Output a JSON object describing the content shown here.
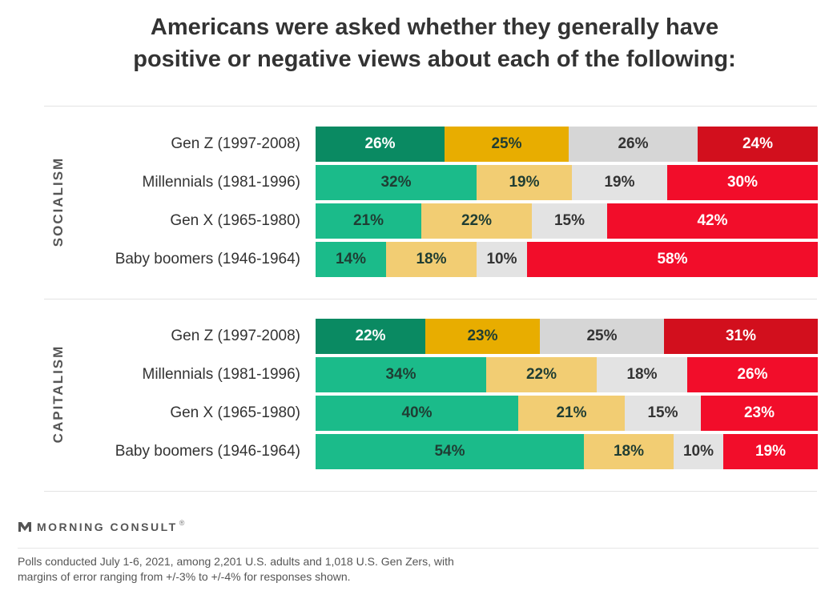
{
  "title_lines": [
    "Americans were asked whether they generally have",
    "positive or negative views about each of the following:"
  ],
  "colors": {
    "section_first_row": [
      "#0a8a62",
      "#e8ad00",
      "#d6d6d6",
      "#d20f1d"
    ],
    "section_other_rows": [
      "#1bbb8a",
      "#f2cd73",
      "#e3e3e3",
      "#f20d2a"
    ],
    "label_text_dark": "#1f3d33",
    "label_text_light": "#ffffff"
  },
  "chart_data": {
    "type": "bar",
    "orientation": "horizontal",
    "stacked": true,
    "sections": [
      {
        "name": "SOCIALISM",
        "categories": [
          "Gen Z (1997-2008)",
          "Millennials (1981-1996)",
          "Gen X (1965-1980)",
          "Baby boomers (1946-1964)"
        ],
        "values": [
          [
            26,
            25,
            26,
            24
          ],
          [
            32,
            19,
            19,
            30
          ],
          [
            21,
            22,
            15,
            42
          ],
          [
            14,
            18,
            10,
            58
          ]
        ]
      },
      {
        "name": "CAPITALISM",
        "categories": [
          "Gen Z (1997-2008)",
          "Millennials (1981-1996)",
          "Gen X (1965-1980)",
          "Baby boomers (1946-1964)"
        ],
        "values": [
          [
            22,
            23,
            25,
            31
          ],
          [
            34,
            22,
            18,
            26
          ],
          [
            40,
            21,
            15,
            23
          ],
          [
            54,
            18,
            10,
            19
          ]
        ]
      }
    ],
    "value_suffix": "%",
    "legend": null,
    "grid": false
  },
  "brand": {
    "name": "MORNING CONSULT",
    "mark": "®"
  },
  "footnote_lines": [
    "Polls conducted July 1-6, 2021, among 2,201 U.S. adults and 1,018 U.S. Gen Zers, with",
    "margins of error ranging from +/-3% to +/-4% for responses shown."
  ]
}
